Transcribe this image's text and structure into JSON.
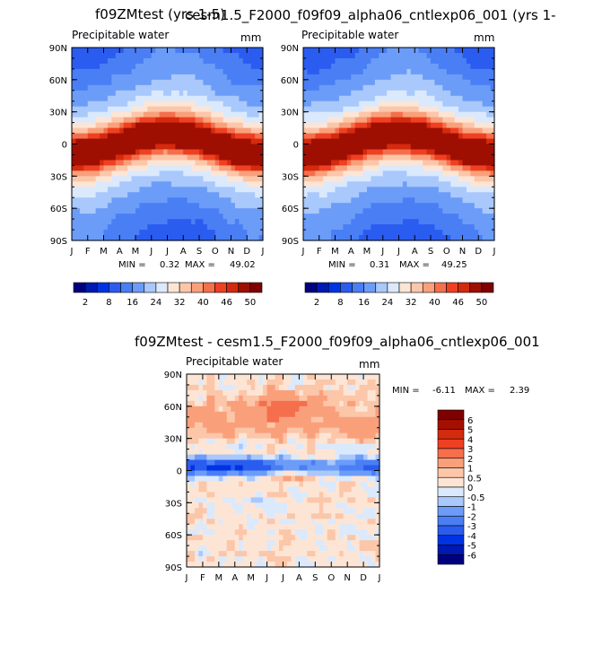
{
  "page": {
    "top_title": "f09ZMtest (yrs 1-5)",
    "top_title_right": "cesm1.5_F2000_f09f09_alpha06_cntlexp06_001 (yrs 1-",
    "bottom_title": "f09ZMtest - cesm1.5_F2000_f09f09_alpha06_cntlexp06_001"
  },
  "chart_data": [
    {
      "type": "heatmap",
      "title": "Precipitable water",
      "units": "mm",
      "x_ticks": [
        "J",
        "F",
        "M",
        "A",
        "M",
        "J",
        "J",
        "A",
        "S",
        "O",
        "N",
        "D",
        "J"
      ],
      "y_ticks": [
        "90N",
        "60N",
        "30N",
        "0",
        "30S",
        "60S",
        "90S"
      ],
      "min_label": "MIN =",
      "min": "0.32",
      "max_label": "MAX =",
      "max": "49.02",
      "colorbar_labels": [
        "2",
        "8",
        "16",
        "24",
        "32",
        "40",
        "46",
        "50"
      ],
      "peak_month": 7.5,
      "peak_lat": 7,
      "peak_value": 49.02
    },
    {
      "type": "heatmap",
      "title": "Precipitable water",
      "units": "mm",
      "x_ticks": [
        "J",
        "F",
        "M",
        "A",
        "M",
        "J",
        "J",
        "A",
        "S",
        "O",
        "N",
        "D",
        "J"
      ],
      "y_ticks": [
        "90N",
        "60N",
        "30N",
        "0",
        "30S",
        "60S",
        "90S"
      ],
      "min_label": "MIN =",
      "min": "0.31",
      "max_label": "MAX =",
      "max": "49.25",
      "colorbar_labels": [
        "2",
        "8",
        "16",
        "24",
        "32",
        "40",
        "46",
        "50"
      ],
      "peak_month": 7.5,
      "peak_lat": 7,
      "peak_value": 49.25
    },
    {
      "type": "heatmap",
      "title": "Precipitable water",
      "units": "mm",
      "x_ticks": [
        "J",
        "F",
        "M",
        "A",
        "M",
        "J",
        "J",
        "A",
        "S",
        "O",
        "N",
        "D",
        "J"
      ],
      "y_ticks": [
        "90N",
        "60N",
        "30N",
        "0",
        "30S",
        "60S",
        "90S"
      ],
      "min_label": "MIN =",
      "min": "-6.11",
      "max_label": "MAX =",
      "max": "2.39",
      "colorbar_labels": [
        "6",
        "5",
        "4",
        "3",
        "2",
        "1",
        "0.5",
        "0",
        "-0.5",
        "-1",
        "-2",
        "-3",
        "-4",
        "-5",
        "-6"
      ]
    }
  ],
  "colors": {
    "abs_scale": [
      "#00007f",
      "#0019b2",
      "#0033e5",
      "#2b5cf0",
      "#4a7ef5",
      "#6b9cf8",
      "#a9c8fb",
      "#dbe9fd",
      "#fde5d5",
      "#fcc6a9",
      "#f9a07b",
      "#f56f4c",
      "#ef4022",
      "#d42a0e",
      "#9e0f02",
      "#7f0000"
    ],
    "diff_scale": [
      "#7f0000",
      "#a50f00",
      "#d42a0e",
      "#ef4022",
      "#f56f4c",
      "#f9a07b",
      "#fcc6a9",
      "#fde5d5",
      "#dbe9fd",
      "#a9c8fb",
      "#6b9cf8",
      "#4a7ef5",
      "#2b5cf0",
      "#0033e5",
      "#0019b2",
      "#00007f"
    ]
  }
}
